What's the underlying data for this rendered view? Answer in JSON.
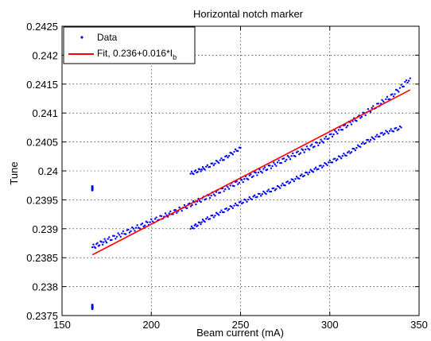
{
  "chart_data": {
    "type": "scatter",
    "title": "Horizontal notch marker",
    "xlabel": "Beam current (mA)",
    "ylabel": "Tune",
    "xlim": [
      150,
      350
    ],
    "ylim": [
      0.2375,
      0.2425
    ],
    "x_ticks": [
      150,
      200,
      250,
      300,
      350
    ],
    "x_tick_labels": [
      "150",
      "200",
      "250",
      "300",
      "350"
    ],
    "y_ticks": [
      0.2375,
      0.238,
      0.2385,
      0.239,
      0.2395,
      0.24,
      0.2405,
      0.241,
      0.2415,
      0.242,
      0.2425
    ],
    "y_tick_labels": [
      "0.2375",
      "0.238",
      "0.2385",
      "0.239",
      "0.2395",
      "0.24",
      "0.2405",
      "0.241",
      "0.2415",
      "0.242",
      "0.2425"
    ],
    "grid": true,
    "legend_position": "top-left",
    "legend": [
      {
        "label": "Data",
        "marker": "dot",
        "color": "#0000ff"
      },
      {
        "label_main": "Fit, 0.236+0.016*I",
        "label_sub": "b",
        "marker": "line",
        "color": "#ff0000"
      }
    ],
    "series": [
      {
        "name": "Data",
        "color": "#0000ff",
        "description_points": [
          [
            167,
            0.23868
          ],
          [
            175,
            0.2388
          ],
          [
            185,
            0.23893
          ],
          [
            195,
            0.23906
          ],
          [
            205,
            0.23919
          ],
          [
            215,
            0.23932
          ],
          [
            225,
            0.23946
          ],
          [
            235,
            0.2396
          ],
          [
            245,
            0.23975
          ],
          [
            255,
            0.2399
          ],
          [
            265,
            0.24005
          ],
          [
            275,
            0.2402
          ],
          [
            285,
            0.24035
          ],
          [
            295,
            0.2405
          ],
          [
            305,
            0.2407
          ],
          [
            315,
            0.2409
          ],
          [
            325,
            0.2411
          ],
          [
            335,
            0.2413
          ],
          [
            345,
            0.2416
          ],
          [
            222,
            0.23995
          ],
          [
            230,
            0.24005
          ],
          [
            240,
            0.2402
          ],
          [
            250,
            0.2404
          ],
          [
            222,
            0.239
          ],
          [
            230,
            0.23915
          ],
          [
            240,
            0.2393
          ],
          [
            250,
            0.23945
          ],
          [
            260,
            0.23958
          ],
          [
            270,
            0.2397
          ],
          [
            280,
            0.23985
          ],
          [
            290,
            0.24
          ],
          [
            300,
            0.24015
          ],
          [
            310,
            0.2403
          ],
          [
            320,
            0.2405
          ],
          [
            330,
            0.24065
          ],
          [
            340,
            0.24075
          ],
          [
            167,
            0.2397
          ],
          [
            167,
            0.23765
          ]
        ]
      },
      {
        "name": "Fit, 0.236+0.016*I_b",
        "color": "#ff0000",
        "type": "line",
        "x": [
          167,
          345
        ],
        "y": [
          0.23855,
          0.2414
        ]
      }
    ]
  }
}
